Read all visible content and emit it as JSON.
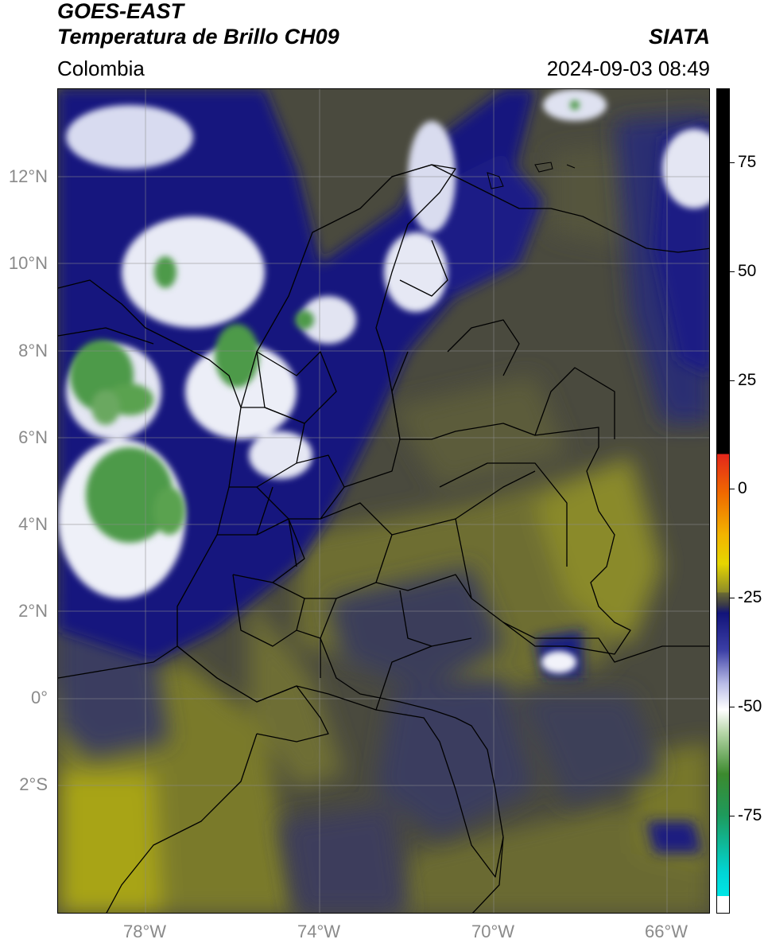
{
  "header": {
    "satellite": "GOES-EAST",
    "product": "Temperatura de Brillo CH09",
    "region": "Colombia",
    "organization": "SIATA",
    "datetime": "2024-09-03 08:49"
  },
  "axes": {
    "lat_labels": [
      "12°N",
      "10°N",
      "8°N",
      "6°N",
      "4°N",
      "2°N",
      "0°",
      "2°S"
    ],
    "lon_labels": [
      "78°W",
      "74°W",
      "70°W",
      "66°W"
    ],
    "lat_range": [
      -4.6,
      14.1
    ],
    "lon_range": [
      -80.0,
      -65.1
    ],
    "grid": true
  },
  "colorbar": {
    "ticks": [
      "75",
      "50",
      "25",
      "0",
      "-25",
      "-50",
      "-75"
    ],
    "range": [
      -95,
      90
    ],
    "colors": {
      "warm": "#000000",
      "red": "#e3261b",
      "yellow": "#e6d600",
      "olive": "#6b6b32",
      "navy": "#12147a",
      "white": "#ffffff",
      "green": "#3c8a2e",
      "cyan": "#00d6d6"
    }
  }
}
